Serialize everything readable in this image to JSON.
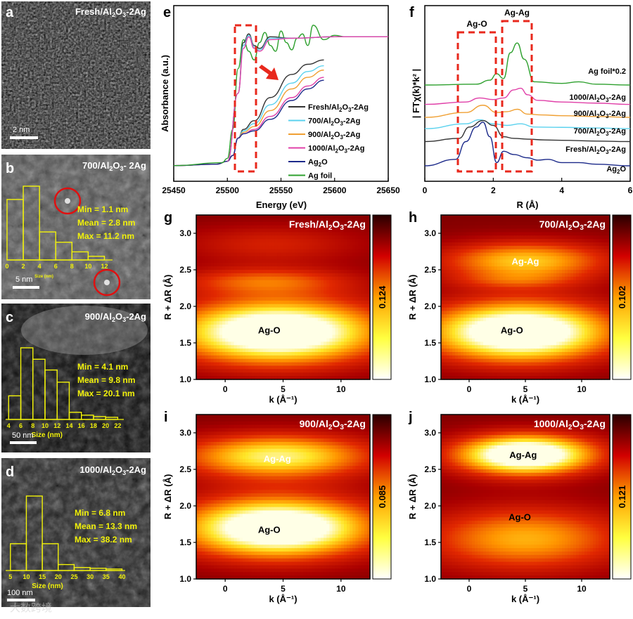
{
  "chart_data": [
    {
      "panel": "a",
      "type": "image",
      "title": "Fresh/Al2O3-2Ag",
      "scalebar": "2 nm"
    },
    {
      "panel": "b",
      "type": "bar",
      "title": "700/Al2O3- 2Ag",
      "scalebar": "5 nm",
      "xlabel": "Size (nm)",
      "xticks": [
        "0",
        "2",
        "4",
        "6",
        "8",
        "10",
        "12"
      ],
      "bin_starts": [
        0,
        2,
        4,
        6,
        8,
        10
      ],
      "bin_width": 2,
      "values": [
        0.82,
        1.0,
        0.38,
        0.24,
        0.11,
        0.05
      ],
      "xlim": [
        0,
        13
      ],
      "stats": [
        "Min = 1.1 nm",
        "Mean = 2.8 nm",
        "Max = 11.2 nm"
      ]
    },
    {
      "panel": "c",
      "type": "bar",
      "title": "900/Al2O3-2Ag",
      "scalebar": "50 nm",
      "xlabel": "Size (nm)",
      "xticks": [
        "4",
        "6",
        "8",
        "10",
        "12",
        "14",
        "16",
        "18",
        "20",
        "22"
      ],
      "bin_starts": [
        4,
        6,
        8,
        10,
        12,
        14,
        16,
        18,
        20
      ],
      "bin_width": 2,
      "values": [
        0.33,
        1.0,
        0.84,
        0.69,
        0.52,
        0.1,
        0.06,
        0.04,
        0.03
      ],
      "xlim": [
        3.5,
        23
      ],
      "stats": [
        "Min = 4.1 nm",
        "Mean = 9.8 nm",
        "Max = 20.1 nm"
      ]
    },
    {
      "panel": "d",
      "type": "bar",
      "title": "1000/Al2O3-2Ag",
      "scalebar": "100 nm",
      "xlabel": "Size (nm)",
      "xticks": [
        "5",
        "10",
        "15",
        "20",
        "25",
        "30",
        "35",
        "40"
      ],
      "bin_starts": [
        5,
        10,
        15,
        20,
        25,
        30,
        35
      ],
      "bin_width": 5,
      "values": [
        0.36,
        1.0,
        0.36,
        0.08,
        0.04,
        0.03,
        0.02
      ],
      "xlim": [
        3.5,
        41
      ],
      "stats": [
        "Min = 6.8 nm",
        "Mean = 13.3 nm",
        "Max = 38.2 nm"
      ]
    },
    {
      "panel": "e",
      "type": "line",
      "xlabel": "Energy (eV)",
      "ylabel": "Absorbance (a.u.)",
      "xlim": [
        25450,
        25650
      ],
      "xticks": [
        "25450",
        "25500",
        "25550",
        "25600",
        "25650"
      ],
      "series": [
        {
          "name": "Fresh/Al2O3-2Ag",
          "color": "#333333",
          "x": [
            25450,
            25490,
            25500,
            25505,
            25510,
            25515,
            25525,
            25540,
            25560,
            25575,
            25590
          ],
          "y": [
            0.05,
            0.06,
            0.08,
            0.12,
            0.24,
            0.3,
            0.36,
            0.52,
            0.68,
            0.75,
            0.78
          ]
        },
        {
          "name": "700/Al2O3-2Ag",
          "color": "#5bd2ee",
          "x": [
            25450,
            25490,
            25500,
            25505,
            25510,
            25515,
            25525,
            25540,
            25560,
            25575,
            25590
          ],
          "y": [
            0.05,
            0.06,
            0.08,
            0.12,
            0.24,
            0.29,
            0.34,
            0.47,
            0.62,
            0.7,
            0.74
          ]
        },
        {
          "name": "900/Al2O3-2Ag",
          "color": "#f0a033",
          "x": [
            25450,
            25490,
            25500,
            25505,
            25510,
            25515,
            25525,
            25540,
            25560,
            25575,
            25590
          ],
          "y": [
            0.05,
            0.06,
            0.08,
            0.12,
            0.24,
            0.28,
            0.32,
            0.43,
            0.58,
            0.66,
            0.71
          ]
        },
        {
          "name": "1000/Al2O3-2Ag",
          "color": "#e040a8",
          "x": [
            25450,
            25490,
            25500,
            25505,
            25510,
            25515,
            25525,
            25540,
            25560,
            25575,
            25590
          ],
          "y": [
            0.05,
            0.06,
            0.08,
            0.12,
            0.24,
            0.27,
            0.3,
            0.39,
            0.52,
            0.6,
            0.66
          ]
        },
        {
          "name": "Ag2O",
          "color": "#1c2a8a",
          "x": [
            25450,
            25490,
            25500,
            25505,
            25510,
            25515,
            25525,
            25540,
            25560,
            25575,
            25590
          ],
          "y": [
            0.05,
            0.06,
            0.08,
            0.12,
            0.24,
            0.27,
            0.29,
            0.37,
            0.5,
            0.58,
            0.64
          ]
        },
        {
          "name": "Ag foil",
          "color": "#2ea02e",
          "x": [
            25450,
            25495,
            25500,
            25505,
            25510,
            25515,
            25520,
            25525,
            25530,
            25535,
            25540,
            25545,
            25550,
            25555,
            25560,
            25565,
            25570,
            25575,
            25580,
            25590,
            25600,
            25610,
            25620,
            25630,
            25640,
            25650
          ],
          "y": [
            0.05,
            0.07,
            0.1,
            0.3,
            0.72,
            0.92,
            0.84,
            0.78,
            0.9,
            0.97,
            0.88,
            0.84,
            0.98,
            0.9,
            0.85,
            0.93,
            0.96,
            0.88,
            1.02,
            0.92,
            0.95,
            0.94,
            0.94,
            0.94,
            0.94,
            0.94
          ]
        },
        {
          "name": "",
          "color": "#333333",
          "x": [
            25500,
            25510,
            25515,
            25520,
            25525,
            25530,
            25540,
            25560,
            25600,
            25650
          ],
          "y": [
            0.08,
            0.55,
            0.9,
            0.96,
            0.88,
            0.86,
            0.94,
            0.93,
            0.94,
            0.94
          ]
        },
        {
          "name": "",
          "color": "#5bd2ee",
          "x": [
            25500,
            25510,
            25515,
            25520,
            25525,
            25530,
            25540,
            25560,
            25600,
            25650
          ],
          "y": [
            0.08,
            0.55,
            0.88,
            0.95,
            0.87,
            0.85,
            0.93,
            0.93,
            0.94,
            0.94
          ]
        },
        {
          "name": "",
          "color": "#e040a8",
          "x": [
            25500,
            25510,
            25515,
            25520,
            25525,
            25530,
            25540,
            25560,
            25600,
            25650
          ],
          "y": [
            0.08,
            0.55,
            0.86,
            0.94,
            0.86,
            0.84,
            0.92,
            0.93,
            0.94,
            0.94
          ]
        }
      ]
    },
    {
      "panel": "f",
      "type": "line",
      "xlabel": "R (Å)",
      "ylabel": "| FTχ(k)*k² |",
      "xlim": [
        0,
        6
      ],
      "xticks": [
        "0",
        "2",
        "4",
        "6"
      ],
      "boxes": [
        "Ag-O",
        "Ag-Ag"
      ],
      "series": [
        {
          "name": "Ag foil*0.2",
          "color": "#2ea02e",
          "offset": 5.0,
          "x": [
            0,
            1.5,
            1.9,
            2.1,
            2.3,
            2.5,
            2.7,
            2.9,
            3.2,
            4,
            4.5,
            5,
            6
          ],
          "y": [
            0,
            0.05,
            0.3,
            0.7,
            0.4,
            2.0,
            2.6,
            1.6,
            0.2,
            0.1,
            0.2,
            0.05,
            0
          ]
        },
        {
          "name": "1000/Al2O3-2Ag",
          "color": "#e040a8",
          "offset": 3.8,
          "x": [
            0,
            1.2,
            1.6,
            2.0,
            2.3,
            2.6,
            2.8,
            3.0,
            3.3,
            4,
            5,
            6
          ],
          "y": [
            0,
            0.15,
            0.4,
            0.3,
            0.4,
            0.9,
            1.0,
            0.6,
            0.25,
            0.15,
            0.08,
            0
          ]
        },
        {
          "name": "900/Al2O3-2Ag",
          "color": "#f0a033",
          "offset": 3.0,
          "x": [
            0,
            1.2,
            1.7,
            2.1,
            2.4,
            2.7,
            3.0,
            3.4,
            4,
            5,
            6
          ],
          "y": [
            0,
            0.3,
            0.75,
            0.3,
            0.35,
            0.5,
            0.2,
            0.15,
            0.1,
            0.05,
            0
          ]
        },
        {
          "name": "700/Al2O3-2Ag",
          "color": "#5bd2ee",
          "offset": 2.3,
          "x": [
            0,
            1.2,
            1.6,
            2.0,
            2.4,
            2.8,
            3.2,
            4,
            5,
            6
          ],
          "y": [
            0,
            0.3,
            0.55,
            0.3,
            0.2,
            0.3,
            0.1,
            0.08,
            0.04,
            0
          ]
        },
        {
          "name": "Fresh/Al2O3-2Ag",
          "color": "#333333",
          "offset": 1.5,
          "x": [
            0,
            1.0,
            1.3,
            1.7,
            2.0,
            2.3,
            2.6,
            3.0,
            3.5,
            4,
            5,
            6
          ],
          "y": [
            0,
            0.2,
            0.9,
            1.3,
            1.0,
            0.3,
            0.2,
            0.15,
            0.1,
            0.08,
            0.03,
            0
          ]
        },
        {
          "name": "Ag2O",
          "color": "#1c2a8a",
          "offset": 0.0,
          "x": [
            0,
            0.9,
            1.2,
            1.5,
            1.7,
            1.9,
            2.1,
            2.3,
            2.6,
            3.0,
            3.3,
            3.6,
            4,
            4.5,
            5,
            6
          ],
          "y": [
            0,
            0.4,
            1.5,
            2.4,
            2.7,
            1.8,
            0.2,
            0.9,
            0.7,
            0.5,
            0.35,
            0.4,
            0.2,
            0.2,
            0.1,
            0
          ]
        }
      ]
    },
    {
      "panel": "g",
      "type": "heatmap",
      "title": "Fresh/Al2O3-2Ag",
      "xlabel": "k (Å⁻¹)",
      "ylabel": "R + ΔR (Å)",
      "xticks": [
        "0",
        "5",
        "10"
      ],
      "yticks": [
        "1.0",
        "1.5",
        "2.0",
        "2.5",
        "3.0"
      ],
      "xlim": [
        -2.5,
        12.5
      ],
      "ylim": [
        1.0,
        3.25
      ],
      "colorbar_max": "0.124",
      "annotations": [
        "Ag-O"
      ],
      "features": [
        {
          "k": 4.5,
          "r": 1.65,
          "sk": 6.5,
          "sr": 0.32,
          "amp": 1.05
        },
        {
          "k": 3.5,
          "r": 2.35,
          "sk": 5.5,
          "sr": 0.13,
          "amp": 0.35
        },
        {
          "k": 4.0,
          "r": 2.85,
          "sk": 6.0,
          "sr": 0.2,
          "amp": 0.25
        }
      ]
    },
    {
      "panel": "h",
      "type": "heatmap",
      "title": "700/Al2O3-2Ag",
      "xlabel": "k (Å⁻¹)",
      "ylabel": "R + ΔR (Å)",
      "xticks": [
        "0",
        "5",
        "10"
      ],
      "yticks": [
        "1.0",
        "1.5",
        "2.0",
        "2.5",
        "3.0"
      ],
      "xlim": [
        -2.5,
        12.5
      ],
      "ylim": [
        1.0,
        3.25
      ],
      "colorbar_max": "0.102",
      "annotations": [
        "Ag-Ag",
        "Ag-O"
      ],
      "features": [
        {
          "k": 4.5,
          "r": 1.65,
          "sk": 6.0,
          "sr": 0.3,
          "amp": 1.05
        },
        {
          "k": 5.0,
          "r": 2.62,
          "sk": 5.5,
          "sr": 0.2,
          "amp": 0.6
        },
        {
          "k": 4.0,
          "r": 2.35,
          "sk": 4.0,
          "sr": 0.08,
          "amp": 0.15
        }
      ]
    },
    {
      "panel": "i",
      "type": "heatmap",
      "title": "900/Al2O3-2Ag",
      "xlabel": "k (Å⁻¹)",
      "ylabel": "R + ΔR (Å)",
      "xticks": [
        "0",
        "5",
        "10"
      ],
      "yticks": [
        "1.0",
        "1.5",
        "2.0",
        "2.5",
        "3.0"
      ],
      "xlim": [
        -2.5,
        12.5
      ],
      "ylim": [
        1.0,
        3.25
      ],
      "colorbar_max": "0.085",
      "annotations": [
        "Ag-Ag",
        "Ag-O"
      ],
      "features": [
        {
          "k": 4.5,
          "r": 1.7,
          "sk": 6.0,
          "sr": 0.3,
          "amp": 1.05
        },
        {
          "k": 4.5,
          "r": 2.68,
          "sk": 6.0,
          "sr": 0.22,
          "amp": 0.72
        }
      ]
    },
    {
      "panel": "j",
      "type": "heatmap",
      "title": "1000/Al2O3-2Ag",
      "xlabel": "k (Å⁻¹)",
      "ylabel": "R + ΔR (Å)",
      "xticks": [
        "0",
        "5",
        "10"
      ],
      "yticks": [
        "1.0",
        "1.5",
        "2.0",
        "2.5",
        "3.0"
      ],
      "xlim": [
        -2.5,
        12.5
      ],
      "ylim": [
        1.0,
        3.25
      ],
      "colorbar_max": "0.121",
      "annotations": [
        "Ag-Ag",
        "Ag-O"
      ],
      "features": [
        {
          "k": 5.0,
          "r": 2.7,
          "sk": 4.5,
          "sr": 0.2,
          "amp": 1.05
        },
        {
          "k": 5.0,
          "r": 1.55,
          "sk": 6.5,
          "sr": 0.32,
          "amp": 0.55
        }
      ]
    }
  ]
}
